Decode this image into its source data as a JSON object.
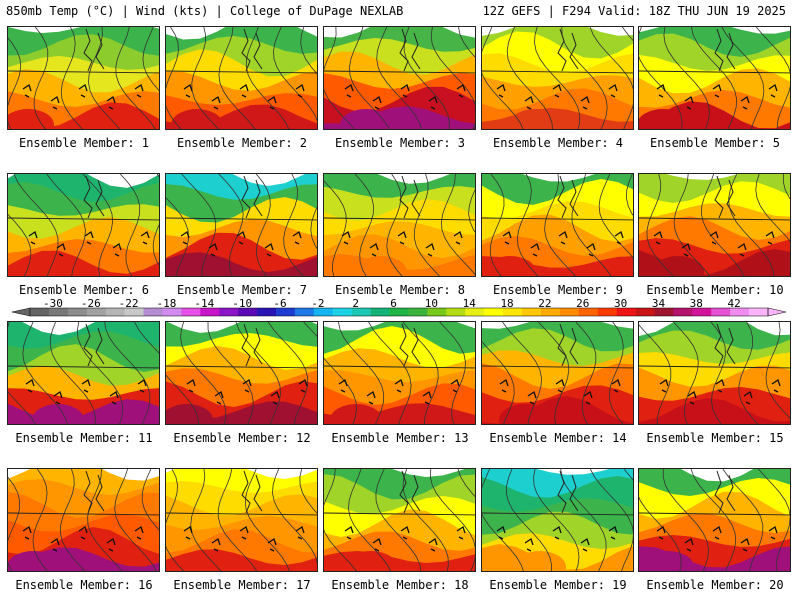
{
  "header": {
    "left": "850mb Temp (°C) | Wind (kts) | College of DuPage NEXLAB",
    "right": "12Z GEFS | F294 Valid: 18Z THU JUN 19 2025"
  },
  "members": [
    {
      "label": "Ensemble Member: 1",
      "palette": [
        "#3cb44b",
        "#8ccc2c",
        "#e6e61e",
        "#ffb400",
        "#ff7800",
        "#e02010"
      ]
    },
    {
      "label": "Ensemble Member: 2",
      "palette": [
        "#3cb44b",
        "#a0d428",
        "#ffdc00",
        "#ff9600",
        "#ff5a00",
        "#d01818"
      ]
    },
    {
      "label": "Ensemble Member: 3",
      "palette": [
        "#46b446",
        "#c8e01e",
        "#ffb400",
        "#ff5a00",
        "#c81020",
        "#a0107a"
      ]
    },
    {
      "label": "Ensemble Member: 4",
      "palette": [
        "#a0d428",
        "#ffff00",
        "#ffdc00",
        "#ffa000",
        "#ff7800",
        "#e23c14"
      ]
    },
    {
      "label": "Ensemble Member: 5",
      "palette": [
        "#3cb44b",
        "#a0d428",
        "#ffff00",
        "#ffb400",
        "#ff7800",
        "#c81018"
      ]
    },
    {
      "label": "Ensemble Member: 6",
      "palette": [
        "#1eb46e",
        "#3cb44b",
        "#c8e01e",
        "#ffb400",
        "#ff7800",
        "#e02010"
      ]
    },
    {
      "label": "Ensemble Member: 7",
      "palette": [
        "#1ecfcf",
        "#3cb44b",
        "#ffdc00",
        "#ff9600",
        "#e02010",
        "#a01030"
      ]
    },
    {
      "label": "Ensemble Member: 8",
      "palette": [
        "#3cb44b",
        "#c8e01e",
        "#ffdc00",
        "#ffb400",
        "#ff9600",
        "#ff7800"
      ]
    },
    {
      "label": "Ensemble Member: 9",
      "palette": [
        "#3cb44b",
        "#ffff00",
        "#ffdc00",
        "#ffa000",
        "#ff7800",
        "#e02010"
      ]
    },
    {
      "label": "Ensemble Member: 10",
      "palette": [
        "#a0d428",
        "#ffff00",
        "#ffb400",
        "#ff7800",
        "#e02010",
        "#b01018"
      ]
    },
    {
      "label": "Ensemble Member: 11",
      "palette": [
        "#1eb46e",
        "#3cb44b",
        "#a0d428",
        "#ffb400",
        "#e02010",
        "#a0107a"
      ]
    },
    {
      "label": "Ensemble Member: 12",
      "palette": [
        "#3cb44b",
        "#ffff00",
        "#ffb400",
        "#ff7800",
        "#e02010",
        "#a01030"
      ]
    },
    {
      "label": "Ensemble Member: 13",
      "palette": [
        "#3cb44b",
        "#ffff00",
        "#ffb400",
        "#ff9600",
        "#ff5a00",
        "#d01818"
      ]
    },
    {
      "label": "Ensemble Member: 14",
      "palette": [
        "#3cb44b",
        "#a0d428",
        "#ffb400",
        "#ff7800",
        "#e02010",
        "#c81018"
      ]
    },
    {
      "label": "Ensemble Member: 15",
      "palette": [
        "#3cb44b",
        "#a0d428",
        "#ffdc00",
        "#ff9600",
        "#e02010",
        "#c81018"
      ]
    },
    {
      "label": "Ensemble Member: 16",
      "palette": [
        "#ffb400",
        "#ff9600",
        "#ff7800",
        "#ff5a00",
        "#e02010",
        "#a0107a"
      ]
    },
    {
      "label": "Ensemble Member: 17",
      "palette": [
        "#ffff00",
        "#ffdc00",
        "#ffb400",
        "#ff9600",
        "#ff7800",
        "#e02010"
      ]
    },
    {
      "label": "Ensemble Member: 18",
      "palette": [
        "#3cb44b",
        "#a0d428",
        "#ffff00",
        "#ffb400",
        "#ff7800",
        "#e02010"
      ]
    },
    {
      "label": "Ensemble Member: 19",
      "palette": [
        "#1ecfcf",
        "#1eb46e",
        "#3cb44b",
        "#a0d428",
        "#ffdc00",
        "#ff9600"
      ]
    },
    {
      "label": "Ensemble Member: 20",
      "palette": [
        "#3cb44b",
        "#ffff00",
        "#ffb400",
        "#ff7800",
        "#e02010",
        "#a0107a"
      ]
    }
  ],
  "colorbar": {
    "tick_labels": [
      "-30",
      "-26",
      "-22",
      "-18",
      "-14",
      "-10",
      "-6",
      "-2",
      "2",
      "6",
      "10",
      "14",
      "18",
      "22",
      "26",
      "30",
      "34",
      "38",
      "42"
    ],
    "colors": [
      "#646464",
      "#787878",
      "#8c8c8c",
      "#a0a0a0",
      "#b4b4b4",
      "#c8c8c8",
      "#b48cd2",
      "#d28cf0",
      "#e650e6",
      "#c814c8",
      "#8c14c8",
      "#5a0ab4",
      "#2814b4",
      "#1e3cd2",
      "#1e78e6",
      "#14b4f0",
      "#1ed2e6",
      "#1ec8b4",
      "#14b478",
      "#1eb446",
      "#3cb43c",
      "#78c81e",
      "#b4dc14",
      "#e6f014",
      "#ffff00",
      "#ffe600",
      "#ffc800",
      "#ffaa00",
      "#ff8c00",
      "#ff6400",
      "#ff3c00",
      "#f01414",
      "#c81414",
      "#a01432",
      "#b4146e",
      "#d2149b",
      "#e650d2",
      "#f08cf0",
      "#fab4fa"
    ]
  }
}
